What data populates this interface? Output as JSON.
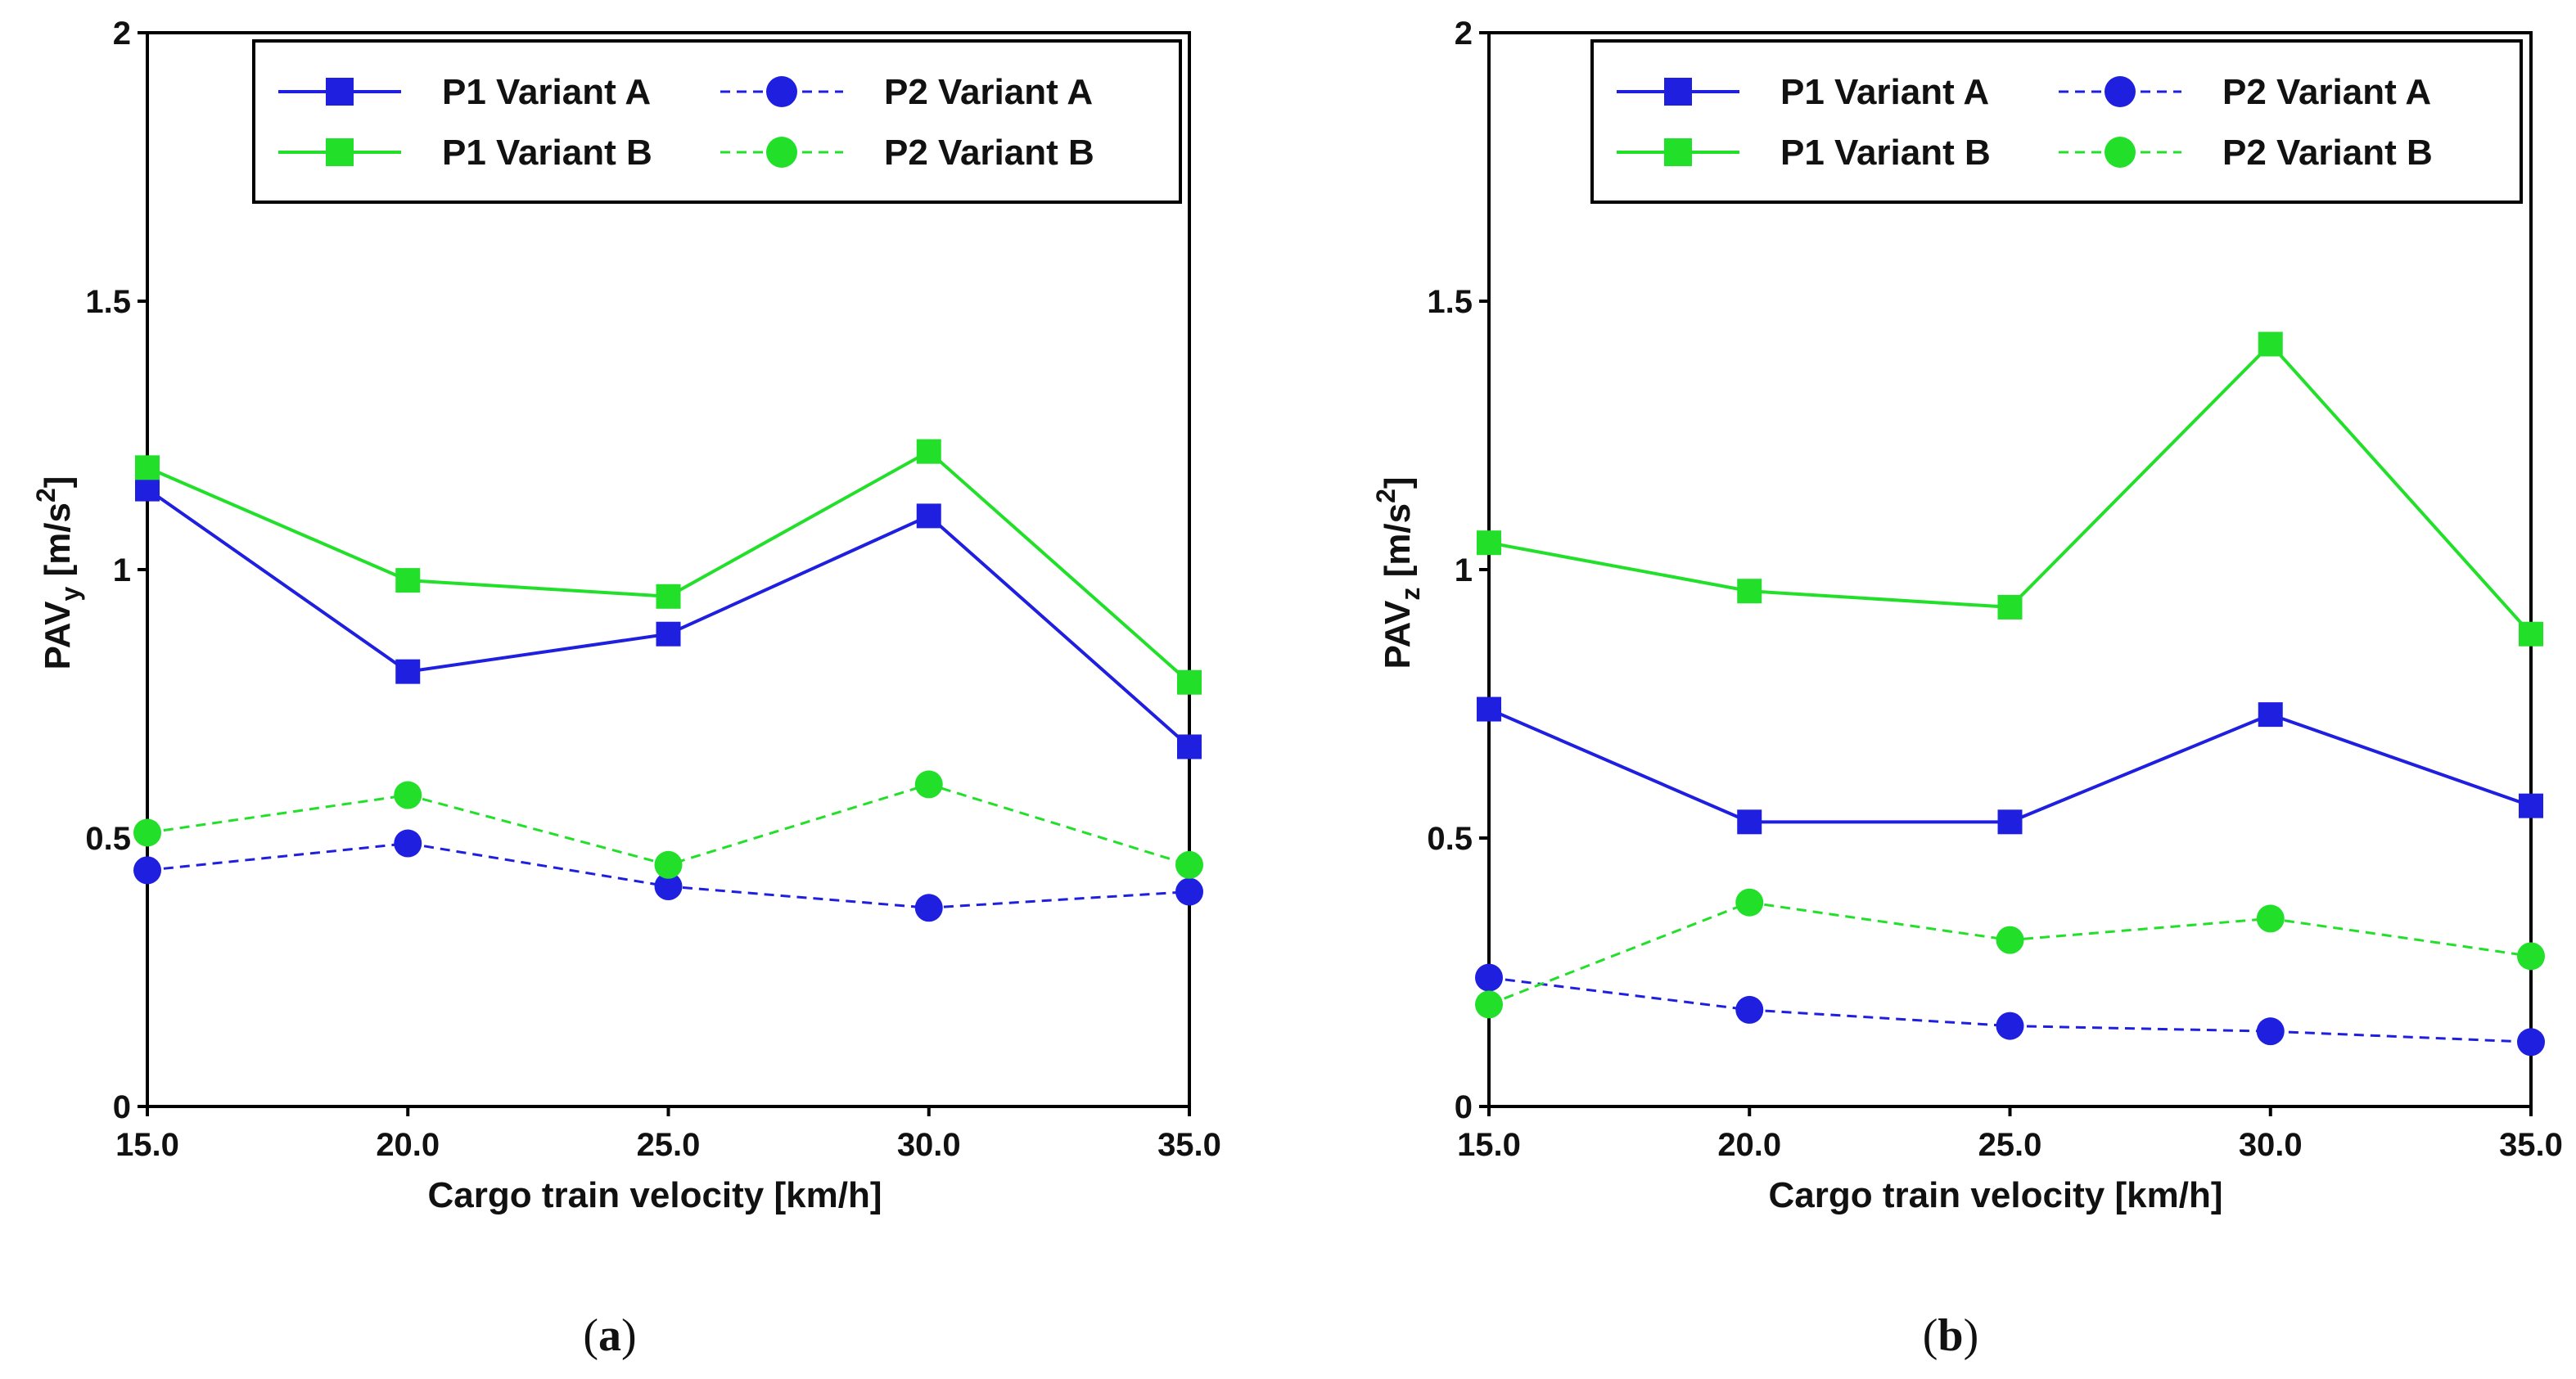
{
  "chart_data": [
    {
      "type": "line",
      "panel_label": "a",
      "xlabel": "Cargo train velocity [km/h]",
      "ylabel": "PAV",
      "ylabel_sub": "y",
      "yunit_prefix": " [m/s",
      "yunit_sup": "2",
      "yunit_suffix": "]",
      "x": [
        15.0,
        20.0,
        25.0,
        30.0,
        35.0
      ],
      "x_tick_labels": [
        "15.0",
        "20.0",
        "25.0",
        "30.0",
        "35.0"
      ],
      "xlim": [
        15,
        35
      ],
      "ylim": [
        0,
        2
      ],
      "y_ticks": [
        0,
        0.5,
        1,
        1.5,
        2
      ],
      "y_tick_labels": [
        "0",
        "0.5",
        "1",
        "1.5",
        "2"
      ],
      "legend_position": "top-right",
      "series": [
        {
          "name": "P1 Variant A",
          "color": "#1f1fe0",
          "marker": "square",
          "dash": "solid",
          "values": [
            1.15,
            0.81,
            0.88,
            1.1,
            0.67
          ]
        },
        {
          "name": "P2 Variant A",
          "color": "#1f1fe0",
          "marker": "circle",
          "dash": "dashed",
          "values": [
            0.44,
            0.49,
            0.41,
            0.37,
            0.4
          ]
        },
        {
          "name": "P1 Variant B",
          "color": "#22e02a",
          "marker": "square",
          "dash": "solid",
          "values": [
            1.19,
            0.98,
            0.95,
            1.22,
            0.79
          ]
        },
        {
          "name": "P2 Variant B",
          "color": "#22e02a",
          "marker": "circle",
          "dash": "dashed",
          "values": [
            0.51,
            0.58,
            0.45,
            0.6,
            0.45
          ]
        }
      ]
    },
    {
      "type": "line",
      "panel_label": "b",
      "xlabel": "Cargo train velocity [km/h]",
      "ylabel": "PAV",
      "ylabel_sub": "z",
      "yunit_prefix": " [m/s",
      "yunit_sup": "2",
      "yunit_suffix": "]",
      "x": [
        15.0,
        20.0,
        25.0,
        30.0,
        35.0
      ],
      "x_tick_labels": [
        "15.0",
        "20.0",
        "25.0",
        "30.0",
        "35.0"
      ],
      "xlim": [
        15,
        35
      ],
      "ylim": [
        0,
        2
      ],
      "y_ticks": [
        0,
        0.5,
        1,
        1.5,
        2
      ],
      "y_tick_labels": [
        "0",
        "0.5",
        "1",
        "1.5",
        "2"
      ],
      "legend_position": "top-right",
      "series": [
        {
          "name": "P1 Variant A",
          "color": "#1f1fe0",
          "marker": "square",
          "dash": "solid",
          "values": [
            0.74,
            0.53,
            0.53,
            0.73,
            0.56
          ]
        },
        {
          "name": "P2 Variant A",
          "color": "#1f1fe0",
          "marker": "circle",
          "dash": "dashed",
          "values": [
            0.24,
            0.18,
            0.15,
            0.14,
            0.12
          ]
        },
        {
          "name": "P1 Variant B",
          "color": "#22e02a",
          "marker": "square",
          "dash": "solid",
          "values": [
            1.05,
            0.96,
            0.93,
            1.42,
            0.88
          ]
        },
        {
          "name": "P2 Variant B",
          "color": "#22e02a",
          "marker": "circle",
          "dash": "dashed",
          "values": [
            0.19,
            0.38,
            0.31,
            0.35,
            0.28
          ]
        }
      ]
    }
  ]
}
